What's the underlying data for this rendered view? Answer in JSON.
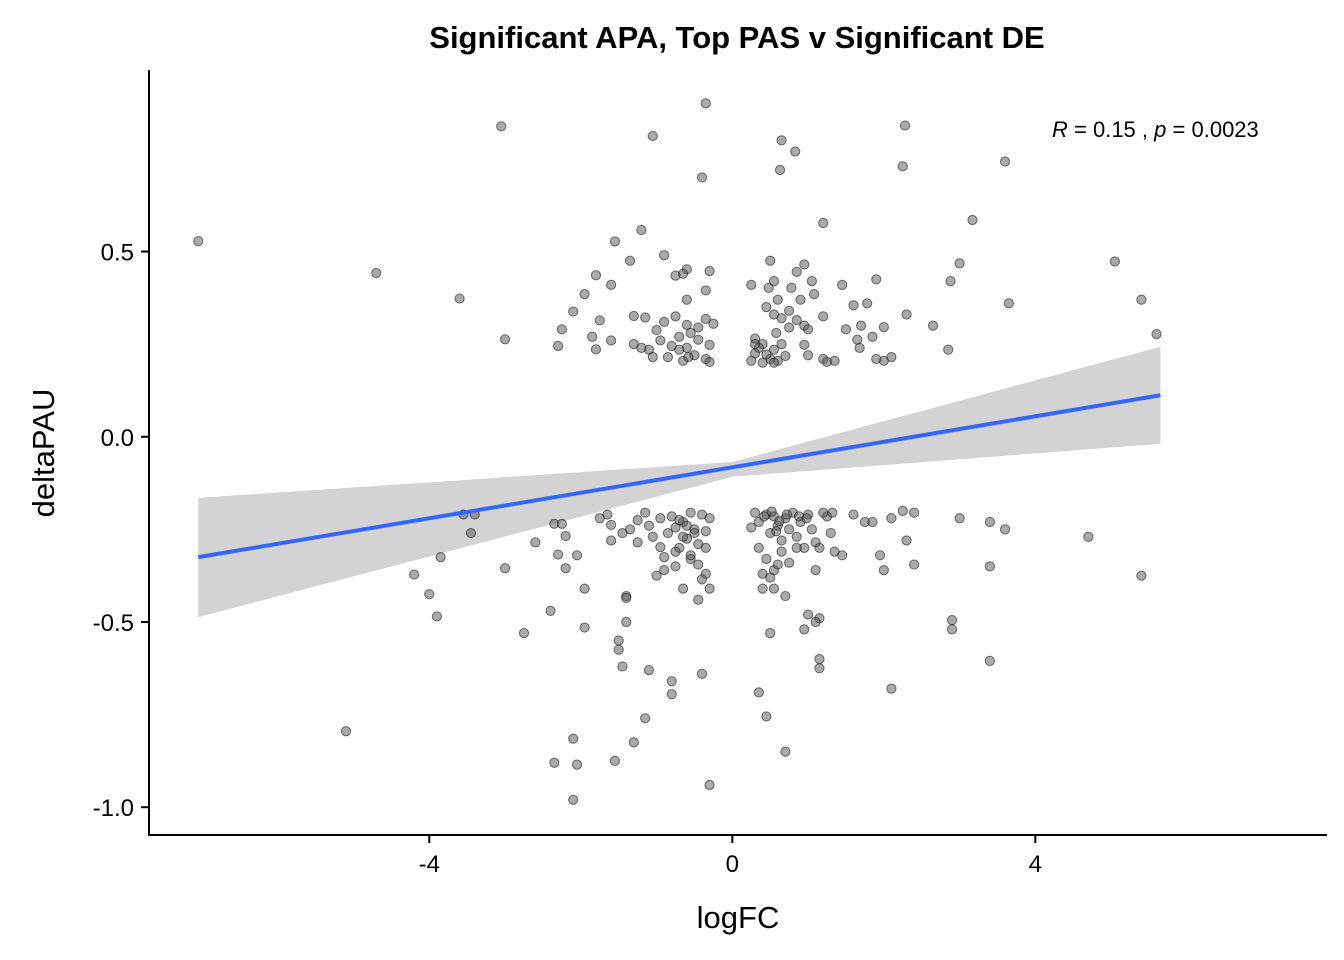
{
  "chart_data": {
    "type": "scatter",
    "title": "Significant APA, Top PAS  v Significant DE",
    "xlabel": "logFC",
    "ylabel": "deltaPAU",
    "xlim": [
      -7.7,
      7.85
    ],
    "ylim": [
      -1.075,
      0.99
    ],
    "xticks": [
      -4,
      0,
      4
    ],
    "xtick_labels": [
      "-4",
      "0",
      "4"
    ],
    "yticks": [
      -1.0,
      -0.5,
      0.0,
      0.5
    ],
    "ytick_labels": [
      "-1.0",
      "-0.5",
      "0.0",
      "0.5"
    ],
    "grid": false,
    "legend": "none",
    "annotation": {
      "r_label": "R",
      "r_value": "= 0.15 ,",
      "p_label": "p",
      "p_value": "= 0.0023"
    },
    "point_color": "#555555",
    "line_color": "#3366ff",
    "band_color": "#d3d3d3",
    "regression": {
      "x": [
        -7.05,
        5.65
      ],
      "y": [
        -0.325,
        0.112
      ],
      "band_x": [
        -7.05,
        0.0,
        5.65
      ],
      "band_upper": [
        -0.165,
        -0.068,
        0.243
      ],
      "band_lower": [
        -0.487,
        -0.108,
        -0.019
      ]
    },
    "points": [
      [
        -7.05,
        0.528
      ],
      [
        -4.7,
        0.442
      ],
      [
        -3.6,
        0.373
      ],
      [
        -3.05,
        0.838
      ],
      [
        -3.0,
        0.263
      ],
      [
        -1.05,
        0.812
      ],
      [
        -0.35,
        0.9
      ],
      [
        -0.4,
        0.7
      ],
      [
        0.65,
        0.8
      ],
      [
        0.83,
        0.77
      ],
      [
        0.63,
        0.72
      ],
      [
        2.28,
        0.84
      ],
      [
        2.25,
        0.73
      ],
      [
        3.6,
        0.743
      ],
      [
        3.17,
        0.585
      ],
      [
        1.2,
        0.577
      ],
      [
        -1.2,
        0.558
      ],
      [
        -1.55,
        0.527
      ],
      [
        -0.9,
        0.49
      ],
      [
        -1.35,
        0.475
      ],
      [
        -0.6,
        0.452
      ],
      [
        -0.65,
        0.44
      ],
      [
        -0.75,
        0.435
      ],
      [
        -0.3,
        0.447
      ],
      [
        -1.8,
        0.436
      ],
      [
        -1.6,
        0.41
      ],
      [
        -1.95,
        0.385
      ],
      [
        -0.35,
        0.395
      ],
      [
        -0.6,
        0.37
      ],
      [
        -2.1,
        0.338
      ],
      [
        -1.75,
        0.314
      ],
      [
        -2.25,
        0.29
      ],
      [
        -1.85,
        0.27
      ],
      [
        -1.6,
        0.26
      ],
      [
        -2.3,
        0.245
      ],
      [
        -1.8,
        0.236
      ],
      [
        -1.3,
        0.326
      ],
      [
        -1.15,
        0.322
      ],
      [
        -1.0,
        0.288
      ],
      [
        -0.9,
        0.31
      ],
      [
        -0.75,
        0.325
      ],
      [
        -0.6,
        0.302
      ],
      [
        -0.45,
        0.295
      ],
      [
        -0.35,
        0.318
      ],
      [
        -0.25,
        0.305
      ],
      [
        -0.55,
        0.28
      ],
      [
        -0.7,
        0.27
      ],
      [
        -0.95,
        0.26
      ],
      [
        -0.8,
        0.245
      ],
      [
        -0.6,
        0.24
      ],
      [
        -0.45,
        0.262
      ],
      [
        -0.3,
        0.248
      ],
      [
        -1.1,
        0.235
      ],
      [
        -1.3,
        0.25
      ],
      [
        -0.85,
        0.215
      ],
      [
        -0.65,
        0.205
      ],
      [
        -0.5,
        0.22
      ],
      [
        -0.35,
        0.21
      ],
      [
        -0.3,
        0.202
      ],
      [
        -1.05,
        0.215
      ],
      [
        -1.2,
        0.24
      ],
      [
        -0.58,
        0.215
      ],
      [
        -0.7,
        0.235
      ],
      [
        0.25,
        0.41
      ],
      [
        0.5,
        0.475
      ],
      [
        0.55,
        0.42
      ],
      [
        0.48,
        0.402
      ],
      [
        0.78,
        0.402
      ],
      [
        0.85,
        0.445
      ],
      [
        0.95,
        0.465
      ],
      [
        1.05,
        0.42
      ],
      [
        0.9,
        0.37
      ],
      [
        1.08,
        0.385
      ],
      [
        0.6,
        0.37
      ],
      [
        0.45,
        0.35
      ],
      [
        0.75,
        0.34
      ],
      [
        0.55,
        0.33
      ],
      [
        0.65,
        0.32
      ],
      [
        0.85,
        0.315
      ],
      [
        0.95,
        0.3
      ],
      [
        1.0,
        0.29
      ],
      [
        1.2,
        0.325
      ],
      [
        1.45,
        0.41
      ],
      [
        1.6,
        0.355
      ],
      [
        1.78,
        0.36
      ],
      [
        1.9,
        0.425
      ],
      [
        2.3,
        0.33
      ],
      [
        1.5,
        0.29
      ],
      [
        1.7,
        0.3
      ],
      [
        1.65,
        0.262
      ],
      [
        1.85,
        0.27
      ],
      [
        1.68,
        0.24
      ],
      [
        2.0,
        0.296
      ],
      [
        2.0,
        0.205
      ],
      [
        2.1,
        0.215
      ],
      [
        1.9,
        0.21
      ],
      [
        2.65,
        0.3
      ],
      [
        2.85,
        0.235
      ],
      [
        2.88,
        0.42
      ],
      [
        3.0,
        0.468
      ],
      [
        3.65,
        0.36
      ],
      [
        5.05,
        0.473
      ],
      [
        5.4,
        0.37
      ],
      [
        5.6,
        0.277
      ],
      [
        0.3,
        0.265
      ],
      [
        0.4,
        0.25
      ],
      [
        0.55,
        0.235
      ],
      [
        0.5,
        0.21
      ],
      [
        0.4,
        0.2
      ],
      [
        0.3,
        0.225
      ],
      [
        0.25,
        0.205
      ],
      [
        0.35,
        0.24
      ],
      [
        0.65,
        0.25
      ],
      [
        0.7,
        0.218
      ],
      [
        0.45,
        0.222
      ],
      [
        0.6,
        0.205
      ],
      [
        0.95,
        0.248
      ],
      [
        1.0,
        0.22
      ],
      [
        1.2,
        0.21
      ],
      [
        1.25,
        0.202
      ],
      [
        1.35,
        0.205
      ],
      [
        0.55,
        0.2
      ],
      [
        0.3,
        0.25
      ],
      [
        0.58,
        0.28
      ],
      [
        0.75,
        0.295
      ],
      [
        -4.2,
        -0.372
      ],
      [
        -4.0,
        -0.425
      ],
      [
        -3.9,
        -0.485
      ],
      [
        -3.85,
        -0.325
      ],
      [
        -3.55,
        -0.21
      ],
      [
        -3.4,
        -0.21
      ],
      [
        -3.45,
        -0.26
      ],
      [
        -3.0,
        -0.355
      ],
      [
        -2.75,
        -0.53
      ],
      [
        -2.6,
        -0.285
      ],
      [
        -2.4,
        -0.47
      ],
      [
        -2.35,
        -0.235
      ],
      [
        -2.25,
        -0.235
      ],
      [
        -2.2,
        -0.268
      ],
      [
        -2.3,
        -0.318
      ],
      [
        -2.2,
        -0.355
      ],
      [
        -2.05,
        -0.32
      ],
      [
        -1.95,
        -0.41
      ],
      [
        -1.95,
        -0.515
      ],
      [
        -1.65,
        -0.21
      ],
      [
        -1.6,
        -0.238
      ],
      [
        -1.6,
        -0.28
      ],
      [
        -1.75,
        -0.22
      ],
      [
        -1.45,
        -0.26
      ],
      [
        -1.35,
        -0.25
      ],
      [
        -1.25,
        -0.225
      ],
      [
        -1.25,
        -0.285
      ],
      [
        -1.15,
        -0.205
      ],
      [
        -1.1,
        -0.24
      ],
      [
        -1.05,
        -0.27
      ],
      [
        -0.95,
        -0.22
      ],
      [
        -0.95,
        -0.298
      ],
      [
        -0.9,
        -0.325
      ],
      [
        -0.85,
        -0.26
      ],
      [
        -0.8,
        -0.215
      ],
      [
        -0.75,
        -0.245
      ],
      [
        -0.7,
        -0.3
      ],
      [
        -0.65,
        -0.23
      ],
      [
        -0.6,
        -0.275
      ],
      [
        -0.55,
        -0.205
      ],
      [
        -0.5,
        -0.25
      ],
      [
        -0.45,
        -0.29
      ],
      [
        -0.4,
        -0.21
      ],
      [
        -0.35,
        -0.255
      ],
      [
        -0.3,
        -0.22
      ],
      [
        -0.55,
        -0.33
      ],
      [
        -0.75,
        -0.35
      ],
      [
        -0.9,
        -0.36
      ],
      [
        -1.0,
        -0.375
      ],
      [
        -0.45,
        -0.345
      ],
      [
        -0.35,
        -0.37
      ],
      [
        -0.4,
        -0.385
      ],
      [
        -0.65,
        -0.41
      ],
      [
        -0.45,
        -0.44
      ],
      [
        -0.3,
        -0.41
      ],
      [
        -0.7,
        -0.225
      ],
      [
        -0.6,
        -0.24
      ],
      [
        -0.5,
        -0.26
      ],
      [
        -0.65,
        -0.27
      ],
      [
        -0.35,
        -0.3
      ],
      [
        -0.75,
        -0.31
      ],
      [
        -0.55,
        -0.32
      ],
      [
        -1.4,
        -0.43
      ],
      [
        -1.4,
        -0.435
      ],
      [
        -1.4,
        -0.5
      ],
      [
        -1.5,
        -0.55
      ],
      [
        -1.5,
        -0.575
      ],
      [
        -1.45,
        -0.62
      ],
      [
        -1.1,
        -0.63
      ],
      [
        -0.8,
        -0.66
      ],
      [
        -0.8,
        -0.695
      ],
      [
        -0.4,
        -0.64
      ],
      [
        -1.15,
        -0.76
      ],
      [
        -1.3,
        -0.825
      ],
      [
        -1.55,
        -0.875
      ],
      [
        -2.35,
        -0.88
      ],
      [
        -2.05,
        -0.885
      ],
      [
        -2.1,
        -0.815
      ],
      [
        -2.1,
        -0.98
      ],
      [
        -0.3,
        -0.94
      ],
      [
        -5.1,
        -0.795
      ],
      [
        0.25,
        -0.245
      ],
      [
        0.35,
        -0.23
      ],
      [
        0.45,
        -0.21
      ],
      [
        0.5,
        -0.26
      ],
      [
        0.55,
        -0.215
      ],
      [
        0.6,
        -0.24
      ],
      [
        0.65,
        -0.28
      ],
      [
        0.7,
        -0.22
      ],
      [
        0.75,
        -0.25
      ],
      [
        0.8,
        -0.205
      ],
      [
        0.85,
        -0.27
      ],
      [
        0.9,
        -0.23
      ],
      [
        0.95,
        -0.3
      ],
      [
        1.0,
        -0.21
      ],
      [
        0.35,
        -0.3
      ],
      [
        0.45,
        -0.33
      ],
      [
        0.55,
        -0.36
      ],
      [
        0.65,
        -0.31
      ],
      [
        0.75,
        -0.34
      ],
      [
        0.85,
        -0.3
      ],
      [
        0.4,
        -0.37
      ],
      [
        0.5,
        -0.38
      ],
      [
        0.6,
        -0.345
      ],
      [
        0.4,
        -0.41
      ],
      [
        0.55,
        -0.41
      ],
      [
        0.7,
        -0.43
      ],
      [
        1.05,
        -0.25
      ],
      [
        1.1,
        -0.285
      ],
      [
        1.15,
        -0.3
      ],
      [
        1.25,
        -0.215
      ],
      [
        1.3,
        -0.26
      ],
      [
        1.35,
        -0.31
      ],
      [
        1.45,
        -0.32
      ],
      [
        1.1,
        -0.36
      ],
      [
        1.6,
        -0.21
      ],
      [
        1.75,
        -0.23
      ],
      [
        1.85,
        -0.23
      ],
      [
        1.95,
        -0.32
      ],
      [
        2.0,
        -0.36
      ],
      [
        2.1,
        -0.22
      ],
      [
        2.25,
        -0.2
      ],
      [
        2.3,
        -0.28
      ],
      [
        2.4,
        -0.345
      ],
      [
        2.4,
        -0.205
      ],
      [
        1.0,
        -0.48
      ],
      [
        1.15,
        -0.49
      ],
      [
        1.1,
        -0.5
      ],
      [
        0.95,
        -0.52
      ],
      [
        0.5,
        -0.53
      ],
      [
        1.15,
        -0.6
      ],
      [
        1.15,
        -0.625
      ],
      [
        0.35,
        -0.69
      ],
      [
        0.45,
        -0.755
      ],
      [
        0.7,
        -0.85
      ],
      [
        2.1,
        -0.68
      ],
      [
        2.9,
        -0.495
      ],
      [
        2.9,
        -0.52
      ],
      [
        3.0,
        -0.22
      ],
      [
        3.4,
        -0.23
      ],
      [
        3.4,
        -0.35
      ],
      [
        3.4,
        -0.605
      ],
      [
        3.6,
        -0.25
      ],
      [
        4.7,
        -0.27
      ],
      [
        5.4,
        -0.375
      ],
      [
        0.3,
        -0.205
      ],
      [
        0.42,
        -0.215
      ],
      [
        0.52,
        -0.202
      ],
      [
        0.62,
        -0.228
      ],
      [
        0.72,
        -0.21
      ],
      [
        0.88,
        -0.215
      ],
      [
        0.98,
        -0.22
      ],
      [
        1.2,
        -0.205
      ],
      [
        1.32,
        -0.205
      ],
      [
        0.58,
        -0.255
      ]
    ]
  }
}
